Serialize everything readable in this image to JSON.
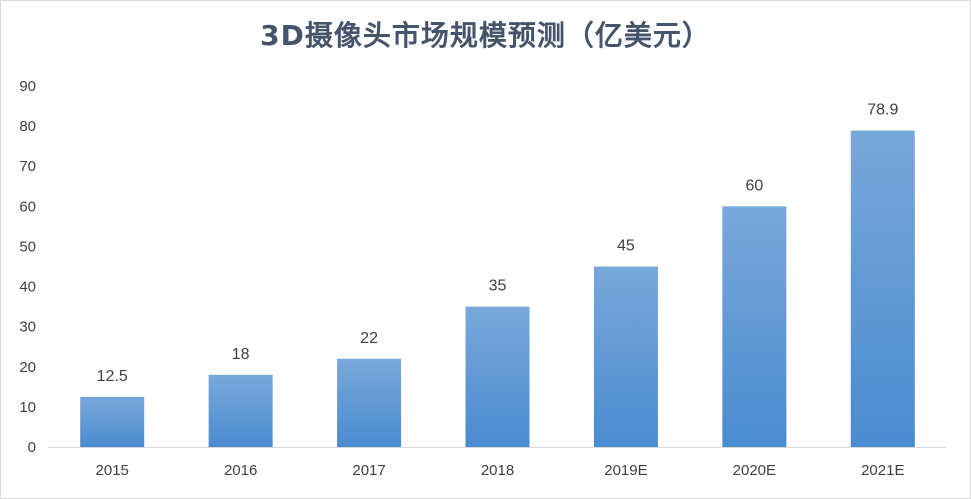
{
  "chart_data": {
    "type": "bar",
    "title": "3D摄像头市场规模预测（亿美元）",
    "categories": [
      "2015",
      "2016",
      "2017",
      "2018",
      "2019E",
      "2020E",
      "2021E"
    ],
    "values": [
      12.5,
      18,
      22,
      35,
      45,
      60,
      78.9
    ],
    "data_labels": [
      "12.5",
      "18",
      "22",
      "35",
      "45",
      "60",
      "78.9"
    ],
    "y_ticks": [
      "0",
      "10",
      "20",
      "30",
      "40",
      "50",
      "60",
      "70",
      "80",
      "90"
    ],
    "ylim": [
      0,
      90
    ],
    "grid": false,
    "legend": "none",
    "bar_color_top": "#79a8da",
    "bar_color_bottom": "#4a8bd0"
  }
}
